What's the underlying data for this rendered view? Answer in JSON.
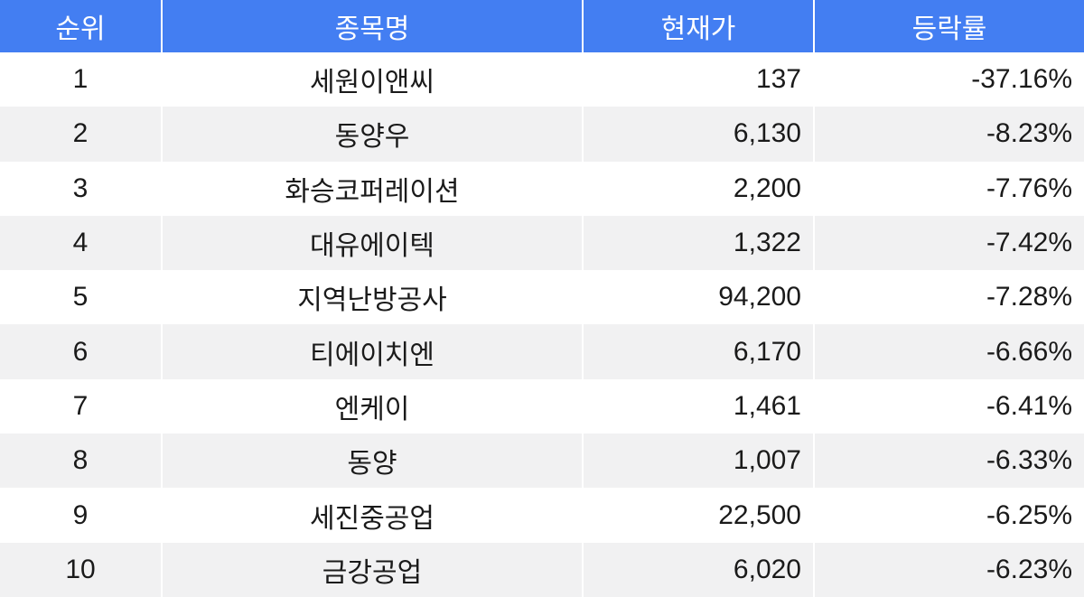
{
  "table": {
    "columns": [
      {
        "key": "rank",
        "label": "순위"
      },
      {
        "key": "name",
        "label": "종목명"
      },
      {
        "key": "price",
        "label": "현재가"
      },
      {
        "key": "change",
        "label": "등락률"
      }
    ],
    "rows": [
      {
        "rank": "1",
        "name": "세원이앤씨",
        "price": "137",
        "change": "-37.16%"
      },
      {
        "rank": "2",
        "name": "동양우",
        "price": "6,130",
        "change": "-8.23%"
      },
      {
        "rank": "3",
        "name": "화승코퍼레이션",
        "price": "2,200",
        "change": "-7.76%"
      },
      {
        "rank": "4",
        "name": "대유에이텍",
        "price": "1,322",
        "change": "-7.42%"
      },
      {
        "rank": "5",
        "name": "지역난방공사",
        "price": "94,200",
        "change": "-7.28%"
      },
      {
        "rank": "6",
        "name": "티에이치엔",
        "price": "6,170",
        "change": "-6.66%"
      },
      {
        "rank": "7",
        "name": "엔케이",
        "price": "1,461",
        "change": "-6.41%"
      },
      {
        "rank": "8",
        "name": "동양",
        "price": "1,007",
        "change": "-6.33%"
      },
      {
        "rank": "9",
        "name": "세진중공업",
        "price": "22,500",
        "change": "-6.25%"
      },
      {
        "rank": "10",
        "name": "금강공업",
        "price": "6,020",
        "change": "-6.23%"
      }
    ]
  },
  "colors": {
    "header_bg": "#437EF2",
    "header_text": "#FFFFFF",
    "row_bg": "#FFFFFF",
    "row_alt_bg": "#F1F1F2",
    "body_text": "#1A1A1A",
    "separator": "#FFFFFF"
  },
  "chart_data": {
    "type": "table",
    "title": "",
    "columns": [
      "순위",
      "종목명",
      "현재가",
      "등락률"
    ],
    "rows": [
      [
        "1",
        "세원이앤씨",
        137,
        "-37.16%"
      ],
      [
        "2",
        "동양우",
        6130,
        "-8.23%"
      ],
      [
        "3",
        "화승코퍼레이션",
        2200,
        "-7.76%"
      ],
      [
        "4",
        "대유에이텍",
        1322,
        "-7.42%"
      ],
      [
        "5",
        "지역난방공사",
        94200,
        "-7.28%"
      ],
      [
        "6",
        "티에이치엔",
        6170,
        "-6.66%"
      ],
      [
        "7",
        "엔케이",
        1461,
        "-6.41%"
      ],
      [
        "8",
        "동양",
        1007,
        "-6.33%"
      ],
      [
        "9",
        "세진중공업",
        22500,
        "-6.25%"
      ],
      [
        "10",
        "금강공업",
        6020,
        "-6.23%"
      ]
    ],
    "layout_hints": {
      "striped_rows": true,
      "header_position": "top",
      "numeric_columns_right_aligned": [
        "현재가",
        "등락률"
      ]
    }
  }
}
